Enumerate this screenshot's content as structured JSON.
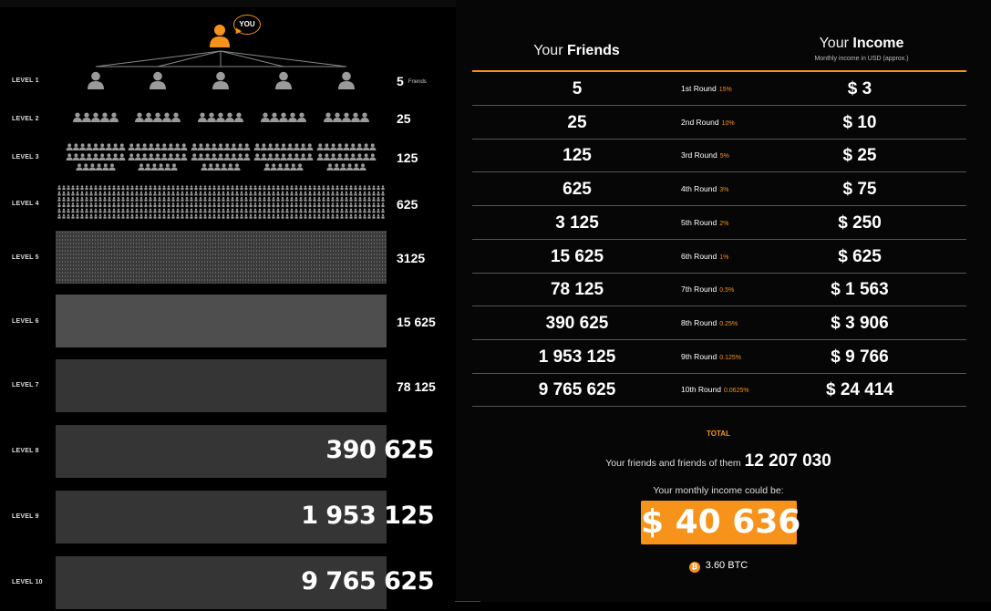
{
  "you_label": "YOU",
  "levels": [
    {
      "label": "LEVEL 1",
      "count": "5",
      "count_suffix": "Friends"
    },
    {
      "label": "LEVEL 2",
      "count": "25"
    },
    {
      "label": "LEVEL 3",
      "count": "125"
    },
    {
      "label": "LEVEL 4",
      "count": "625"
    },
    {
      "label": "LEVEL 5",
      "count": "3125"
    },
    {
      "label": "LEVEL 6",
      "count": "15 625"
    },
    {
      "label": "LEVEL 7",
      "count": "78 125"
    },
    {
      "label": "LEVEL 8",
      "count": "390 625"
    },
    {
      "label": "LEVEL 9",
      "count": "1 953 125"
    },
    {
      "label": "LEVEL 10",
      "count": "9 765 625"
    }
  ],
  "table": {
    "friends_header_prefix": "Your ",
    "friends_header_bold": "Friends",
    "income_header_prefix": "Your ",
    "income_header_bold": "Income",
    "income_header_sub": "Monthly income in USD (approx.)",
    "rows": [
      {
        "friends": "5",
        "round": "1st Round",
        "pct": "15%",
        "income": "$ 3"
      },
      {
        "friends": "25",
        "round": "2nd Round",
        "pct": "10%",
        "income": "$ 10"
      },
      {
        "friends": "125",
        "round": "3rd Round",
        "pct": "5%",
        "income": "$ 25"
      },
      {
        "friends": "625",
        "round": "4th Round",
        "pct": "3%",
        "income": "$ 75"
      },
      {
        "friends": "3 125",
        "round": "5th Round",
        "pct": "2%",
        "income": "$ 250"
      },
      {
        "friends": "15 625",
        "round": "6th Round",
        "pct": "1%",
        "income": "$ 625"
      },
      {
        "friends": "78 125",
        "round": "7th Round",
        "pct": "0.5%",
        "income": "$ 1 563"
      },
      {
        "friends": "390 625",
        "round": "8th Round",
        "pct": "0.25%",
        "income": "$ 3 906"
      },
      {
        "friends": "1 953 125",
        "round": "9th Round",
        "pct": "0.125%",
        "income": "$ 9 766"
      },
      {
        "friends": "9 765 625",
        "round": "10th Round",
        "pct": "0.0625%",
        "income": "$ 24 414"
      }
    ]
  },
  "total": {
    "label": "TOTAL",
    "friends_text": "Your friends and friends of them",
    "friends_value": "12 207 030",
    "income_text": "Your monthly income could be:",
    "income_value": "$ 40 636",
    "btc_value": "3.60 BTC",
    "btc_symbol": "₿"
  },
  "colors": {
    "accent": "#f7931a",
    "background": "#000000",
    "person_icon": "#9a9a9a"
  }
}
